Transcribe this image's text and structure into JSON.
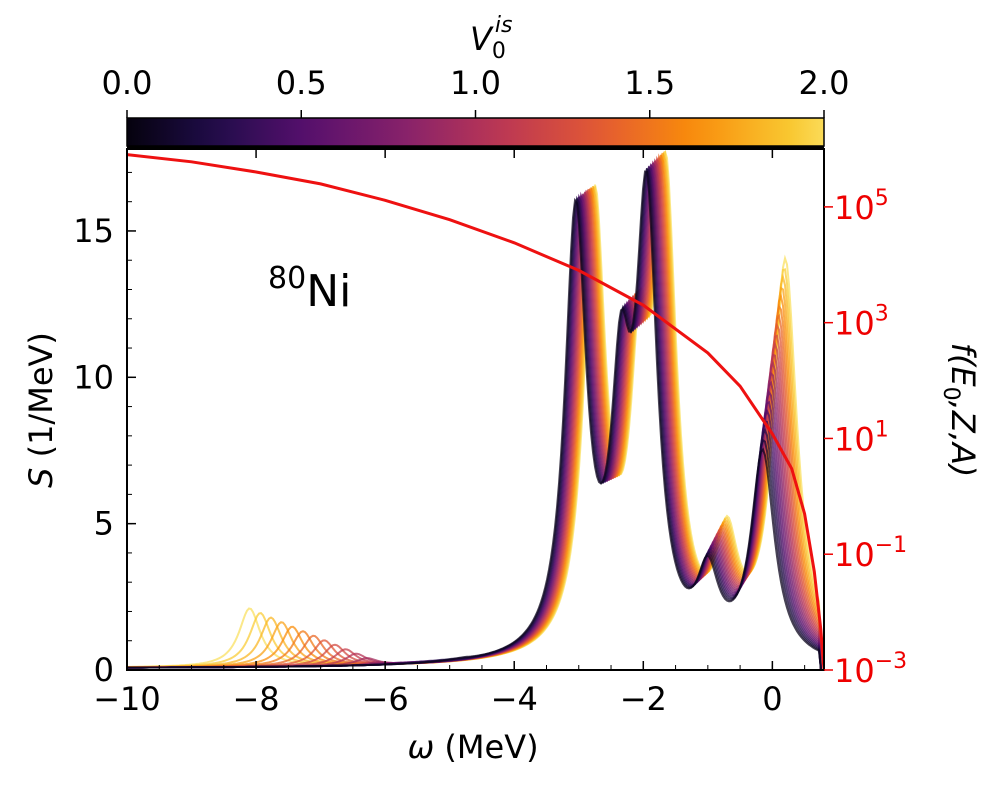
{
  "colors": {
    "axis": "#000000",
    "right_axis": "#ee0000",
    "red_curve": "#ee1111",
    "colormap": "inferno"
  },
  "chart_data": {
    "type": "line",
    "annotation": {
      "mass": "80",
      "symbol": "Ni"
    },
    "colorbar": {
      "label_main": "V",
      "label_sub": "0",
      "label_sup": "is",
      "range": [
        0,
        2
      ],
      "ticks": [
        "0.0",
        "0.5",
        "1.0",
        "1.5",
        "2.0"
      ],
      "tick_values": [
        0,
        0.5,
        1.0,
        1.5,
        2.0
      ],
      "placement": "top",
      "colormap": "inferno"
    },
    "x_axis": {
      "label_symbol": "ω",
      "label_unit": "(MeV)",
      "range": [
        -10,
        0.8
      ],
      "ticks": [
        "−10",
        "−8",
        "−6",
        "−4",
        "−2",
        "0"
      ],
      "tick_values": [
        -10,
        -8,
        -6,
        -4,
        -2,
        0
      ]
    },
    "y_axis_left": {
      "label_symbol": "S",
      "label_unit": "(1/MeV)",
      "range": [
        0,
        17.8
      ],
      "ticks": [
        "0",
        "5",
        "10",
        "15"
      ],
      "tick_values": [
        0,
        5,
        10,
        15
      ]
    },
    "y_axis_right": {
      "label": "f(E0,Z,A)",
      "label_f": "f(",
      "label_E": "E",
      "label_sub": "0",
      "label_rest": ",Z,A)",
      "scale": "log",
      "range": [
        0.001,
        1000000
      ],
      "ticks": [
        {
          "base": "10",
          "exp": "5",
          "value": 100000
        },
        {
          "base": "10",
          "exp": "3",
          "value": 1000
        },
        {
          "base": "10",
          "exp": "1",
          "value": 10
        },
        {
          "base": "10",
          "exp": "−1",
          "value": 0.1
        },
        {
          "base": "10",
          "exp": "−3",
          "value": 0.001
        }
      ]
    },
    "phase_space_curve": {
      "axis": "right",
      "x": [
        -10,
        -9,
        -8,
        -7,
        -6,
        -5,
        -4,
        -3,
        -2,
        -1,
        -0.5,
        0,
        0.3,
        0.5,
        0.65,
        0.75,
        0.8
      ],
      "y": [
        800000,
        600000,
        400000,
        250000,
        130000,
        60000,
        24000,
        8000,
        2000,
        300,
        80,
        12,
        3,
        0.5,
        0.05,
        0.005,
        0.001
      ]
    },
    "strength_family": {
      "count": 21,
      "parameter_range": [
        0,
        2
      ],
      "peak_model": "lorentzian",
      "peaks": [
        {
          "x": -3.05,
          "x_shift": 0.3,
          "height": 15.2,
          "height_shift": 0.4,
          "width": 0.2
        },
        {
          "x": -2.35,
          "x_shift": 0.3,
          "height": 8.2,
          "height_shift": 0.5,
          "width": 0.18
        },
        {
          "x": -1.95,
          "x_shift": 0.3,
          "height": 15.2,
          "height_shift": 0.4,
          "width": 0.2
        },
        {
          "x": -1.0,
          "x_shift": 0.3,
          "height": 3.0,
          "height_shift": 1.0,
          "width": 0.2
        },
        {
          "x": -0.15,
          "x_shift": 0.35,
          "height": 10.3,
          "height_shift": 6.5,
          "width": 0.22
        },
        {
          "x": -4.8,
          "x_shift": -3.3,
          "height": 0.4,
          "height_shift": 3.2,
          "width": 0.2
        }
      ],
      "baseline": 0.05
    }
  }
}
